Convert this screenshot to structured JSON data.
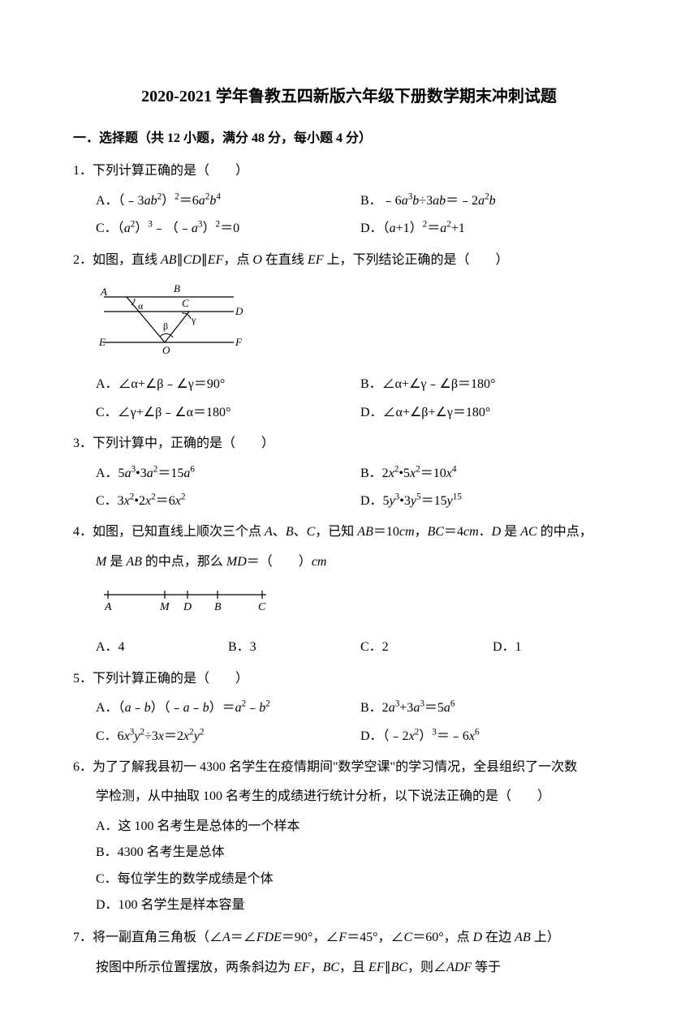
{
  "title": "2020-2021 学年鲁教五四新版六年级下册数学期末冲刺试题",
  "section1Header": "一．选择题（共 12 小题，满分 48 分，每小题 4 分）",
  "q1": {
    "stem": "1．下列计算正确的是（　　）",
    "optA": "A．（﹣3<i>ab</i><sup>2</sup>）<sup>2</sup>＝6<i>a</i><sup>2</sup><i>b</i><sup>4</sup>",
    "optB": "B．﹣6<i>a</i><sup>3</sup><i>b</i>÷3<i>ab</i>＝﹣2<i>a</i><sup>2</sup><i>b</i>",
    "optC": "C．（<i>a</i><sup>2</sup>）<sup>3</sup>﹣（﹣<i>a</i><sup>3</sup>）<sup>2</sup>＝0",
    "optD": "D．（<i>a</i>+1）<sup>2</sup>＝<i>a</i><sup>2</sup>+1"
  },
  "q2": {
    "stem": "2．如图，直线 <i>AB</i>∥<i>CD</i>∥<i>EF</i>，点 <i>O</i> 在直线 <i>EF</i> 上，下列结论正确的是（　　）",
    "optA": "A．∠α+∠β﹣∠γ＝90°",
    "optB": "B．∠α+∠γ﹣∠β＝180°",
    "optC": "C．∠γ+∠β﹣∠α＝180°",
    "optD": "D．∠α+∠β+∠γ＝180°"
  },
  "q3": {
    "stem": "3．下列计算中，正确的是（　　）",
    "optA": "A．5<i>a</i><sup>3</sup>•3<i>a</i><sup>2</sup>＝15<i>a</i><sup>6</sup>",
    "optB": "B．2<i>x</i><sup>2</sup>•5<i>x</i><sup>2</sup>＝10<i>x</i><sup>4</sup>",
    "optC": "C．3<i>x</i><sup>2</sup>•2<i>x</i><sup>2</sup>＝6<i>x</i><sup>2</sup>",
    "optD": "D．5<i>y</i><sup>3</sup>•3<i>y</i><sup>5</sup>＝15<i>y</i><sup>15</sup>"
  },
  "q4": {
    "stem": "4．如图，已知直线上顺次三个点 <i>A</i>、<i>B</i>、<i>C</i>，已知 <i>AB</i>＝10<i>cm</i>，<i>BC</i>＝4<i>cm</i>．<i>D</i> 是 <i>AC</i> 的中点，",
    "stem2": "<i>M</i> 是 <i>AB</i> 的中点，那么 <i>MD</i>＝（　　）<i>cm</i>",
    "optA": "A．4",
    "optB": "B．3",
    "optC": "C．2",
    "optD": "D．1"
  },
  "q5": {
    "stem": "5．下列计算正确的是（　　）",
    "optA": "A．（<i>a</i>﹣<i>b</i>）（﹣<i>a</i>﹣<i>b</i>）＝<i>a</i><sup>2</sup>﹣<i>b</i><sup>2</sup>",
    "optB": "B．2<i>a</i><sup>3</sup>+3<i>a</i><sup>3</sup>＝5<i>a</i><sup>6</sup>",
    "optC": "C．6<i>x</i><sup>3</sup><i>y</i><sup>2</sup>÷3<i>x</i>＝2<i>x</i><sup>2</sup><i>y</i><sup>2</sup>",
    "optD": "D．（﹣2<i>x</i><sup>2</sup>）<sup>3</sup>＝﹣6<i>x</i><sup>6</sup>"
  },
  "q6": {
    "stem": "6．为了了解我县初一 4300 名学生在疫情期间\"数学空课\"的学习情况，全县组织了一次数",
    "stem2": "学检测，从中抽取 100 名考生的成绩进行统计分析，以下说法正确的是（　　）",
    "optA": "A．这 100 名考生是总体的一个样本",
    "optB": "B．4300 名考生是总体",
    "optC": "C．每位学生的数学成绩是个体",
    "optD": "D．100 名学生是样本容量"
  },
  "q7": {
    "stem": "7．将一副直角三角板（∠<i>A</i>＝∠<i>FDE</i>＝90°，∠<i>F</i>＝45°，∠<i>C</i>＝60°，点 <i>D</i> 在边 <i>AB</i> 上）",
    "stem2": "按图中所示位置摆放，两条斜边为 <i>EF</i>，<i>BC</i>，且 <i>EF</i>∥<i>BC</i>，则∠<i>ADF</i> 等于"
  },
  "figures": {
    "lines_svg_width": 190,
    "lines_svg_height": 90,
    "numberline_svg_width": 220,
    "numberline_svg_height": 40,
    "stroke_color": "#000000",
    "text_fontsize": 14
  }
}
